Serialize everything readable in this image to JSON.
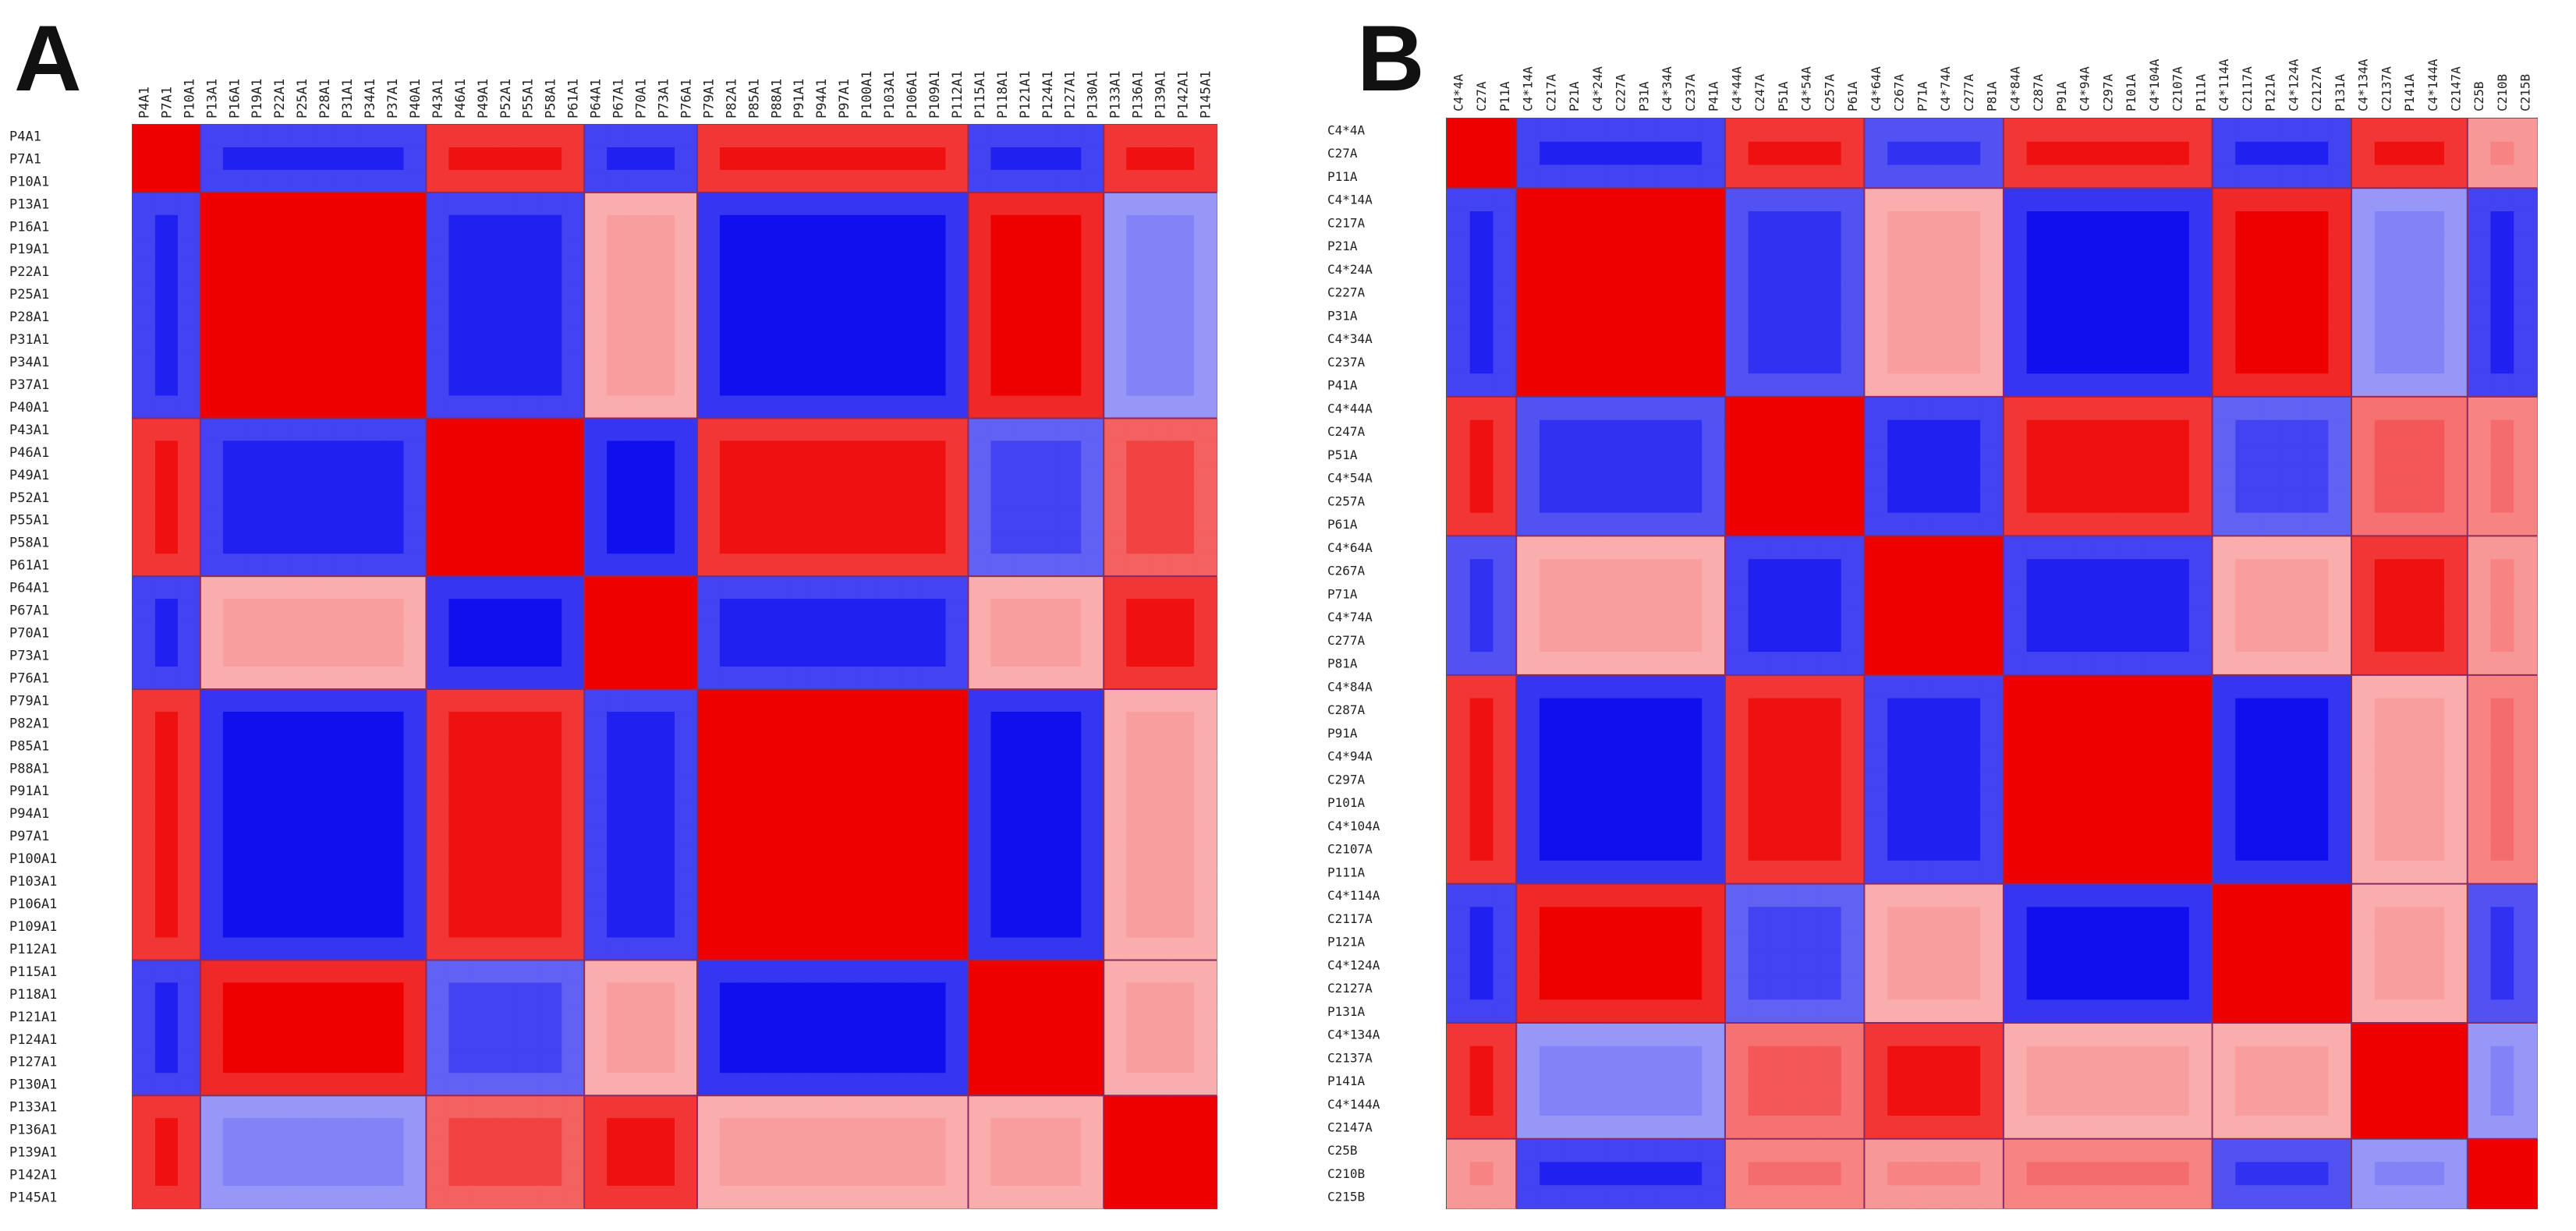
{
  "panels": [
    {
      "id": "A",
      "letter": "A",
      "labels": [
        "P4A1",
        "P7A1",
        "P10A1",
        "P13A1",
        "P16A1",
        "P19A1",
        "P22A1",
        "P25A1",
        "P28A1",
        "P31A1",
        "P34A1",
        "P37A1",
        "P40A1",
        "P43A1",
        "P46A1",
        "P49A1",
        "P52A1",
        "P55A1",
        "P58A1",
        "P61A1",
        "P64A1",
        "P67A1",
        "P70A1",
        "P73A1",
        "P76A1",
        "P79A1",
        "P82A1",
        "P85A1",
        "P88A1",
        "P91A1",
        "P94A1",
        "P97A1",
        "P100A1",
        "P103A1",
        "P106A1",
        "P109A1",
        "P112A1",
        "P115A1",
        "P118A1",
        "P121A1",
        "P124A1",
        "P127A1",
        "P130A1",
        "P133A1",
        "P136A1",
        "P139A1",
        "P142A1",
        "P145A1"
      ],
      "color_low": "#0000ee",
      "color_mid": "#ffffff",
      "color_high": "#ee0000",
      "block_boundaries": [
        3,
        13,
        20,
        25,
        37,
        43
      ],
      "blocks": [
        {
          "name": "b0",
          "from": 0,
          "to": 3
        },
        {
          "name": "b1",
          "from": 3,
          "to": 13
        },
        {
          "name": "b2",
          "from": 13,
          "to": 20
        },
        {
          "name": "b3",
          "from": 20,
          "to": 25
        },
        {
          "name": "b4",
          "from": 25,
          "to": 37
        },
        {
          "name": "b5",
          "from": 37,
          "to": 43
        },
        {
          "name": "b6",
          "from": 43,
          "to": 48
        }
      ],
      "block_matrix": [
        [
          1.0,
          -0.8,
          0.9,
          -0.8,
          0.9,
          -0.8,
          0.9
        ],
        [
          -0.8,
          1.0,
          -0.8,
          0.2,
          -0.9,
          1.0,
          -0.3
        ],
        [
          0.9,
          -0.8,
          1.0,
          -0.9,
          0.9,
          -0.6,
          0.6
        ],
        [
          -0.8,
          0.2,
          -0.9,
          1.0,
          -0.8,
          0.2,
          0.9
        ],
        [
          0.9,
          -0.9,
          0.9,
          -0.8,
          1.0,
          -0.9,
          0.2
        ],
        [
          -0.8,
          1.0,
          -0.6,
          0.2,
          -0.9,
          1.0,
          0.2
        ],
        [
          0.9,
          -0.3,
          0.6,
          0.9,
          0.2,
          0.2,
          1.0
        ]
      ]
    },
    {
      "id": "B",
      "letter": "B",
      "labels": [
        "C4*4A",
        "C27A",
        "P11A",
        "C4*14A",
        "C217A",
        "P21A",
        "C4*24A",
        "C227A",
        "P31A",
        "C4*34A",
        "C237A",
        "P41A",
        "C4*44A",
        "C247A",
        "P51A",
        "C4*54A",
        "C257A",
        "P61A",
        "C4*64A",
        "C267A",
        "P71A",
        "C4*74A",
        "C277A",
        "P81A",
        "C4*84A",
        "C287A",
        "P91A",
        "C4*94A",
        "C297A",
        "P101A",
        "C4*104A",
        "C2107A",
        "P111A",
        "C4*114A",
        "C2117A",
        "P121A",
        "C4*124A",
        "C2127A",
        "P131A",
        "C4*134A",
        "C2137A",
        "P141A",
        "C4*144A",
        "C2147A",
        "C25B",
        "C210B",
        "C215B"
      ],
      "color_low": "#0000ee",
      "color_mid": "#ffffff",
      "color_high": "#ee0000",
      "block_boundaries": [
        3,
        12,
        18,
        24,
        33,
        39,
        44
      ],
      "blocks": [
        {
          "name": "b0",
          "from": 0,
          "to": 3
        },
        {
          "name": "b1",
          "from": 3,
          "to": 12
        },
        {
          "name": "b2",
          "from": 12,
          "to": 18
        },
        {
          "name": "b3",
          "from": 18,
          "to": 24
        },
        {
          "name": "b4",
          "from": 24,
          "to": 33
        },
        {
          "name": "b5",
          "from": 33,
          "to": 39
        },
        {
          "name": "b6",
          "from": 39,
          "to": 44
        },
        {
          "name": "b7",
          "from": 44,
          "to": 47
        }
      ],
      "block_matrix": [
        [
          1.0,
          -0.8,
          0.9,
          -0.7,
          0.9,
          -0.8,
          0.9,
          0.3
        ],
        [
          -0.8,
          1.0,
          -0.7,
          0.2,
          -0.9,
          1.0,
          -0.3,
          -0.8
        ],
        [
          0.9,
          -0.7,
          1.0,
          -0.8,
          0.9,
          -0.6,
          0.5,
          0.4
        ],
        [
          -0.7,
          0.2,
          -0.8,
          1.0,
          -0.8,
          0.2,
          0.9,
          0.3
        ],
        [
          0.9,
          -0.9,
          0.9,
          -0.8,
          1.0,
          -0.9,
          0.2,
          0.4
        ],
        [
          -0.8,
          1.0,
          -0.6,
          0.2,
          -0.9,
          1.0,
          0.2,
          -0.7
        ],
        [
          0.9,
          -0.3,
          0.5,
          0.9,
          0.2,
          0.2,
          1.0,
          -0.3
        ],
        [
          0.3,
          -0.8,
          0.4,
          0.3,
          0.4,
          -0.7,
          -0.3,
          1.0
        ]
      ]
    }
  ],
  "chart_data": [
    {
      "type": "heatmap",
      "panel": "A",
      "rows": "panels.0.labels",
      "cols": "panels.0.labels",
      "value_range": [
        -1,
        1
      ],
      "colormap": [
        "blue",
        "white",
        "red"
      ],
      "symmetric": true,
      "diagonal": 1
    },
    {
      "type": "heatmap",
      "panel": "B",
      "rows": "panels.1.labels",
      "cols": "panels.1.labels",
      "value_range": [
        -1,
        1
      ],
      "colormap": [
        "blue",
        "white",
        "red"
      ],
      "symmetric": true,
      "diagonal": 1
    }
  ]
}
